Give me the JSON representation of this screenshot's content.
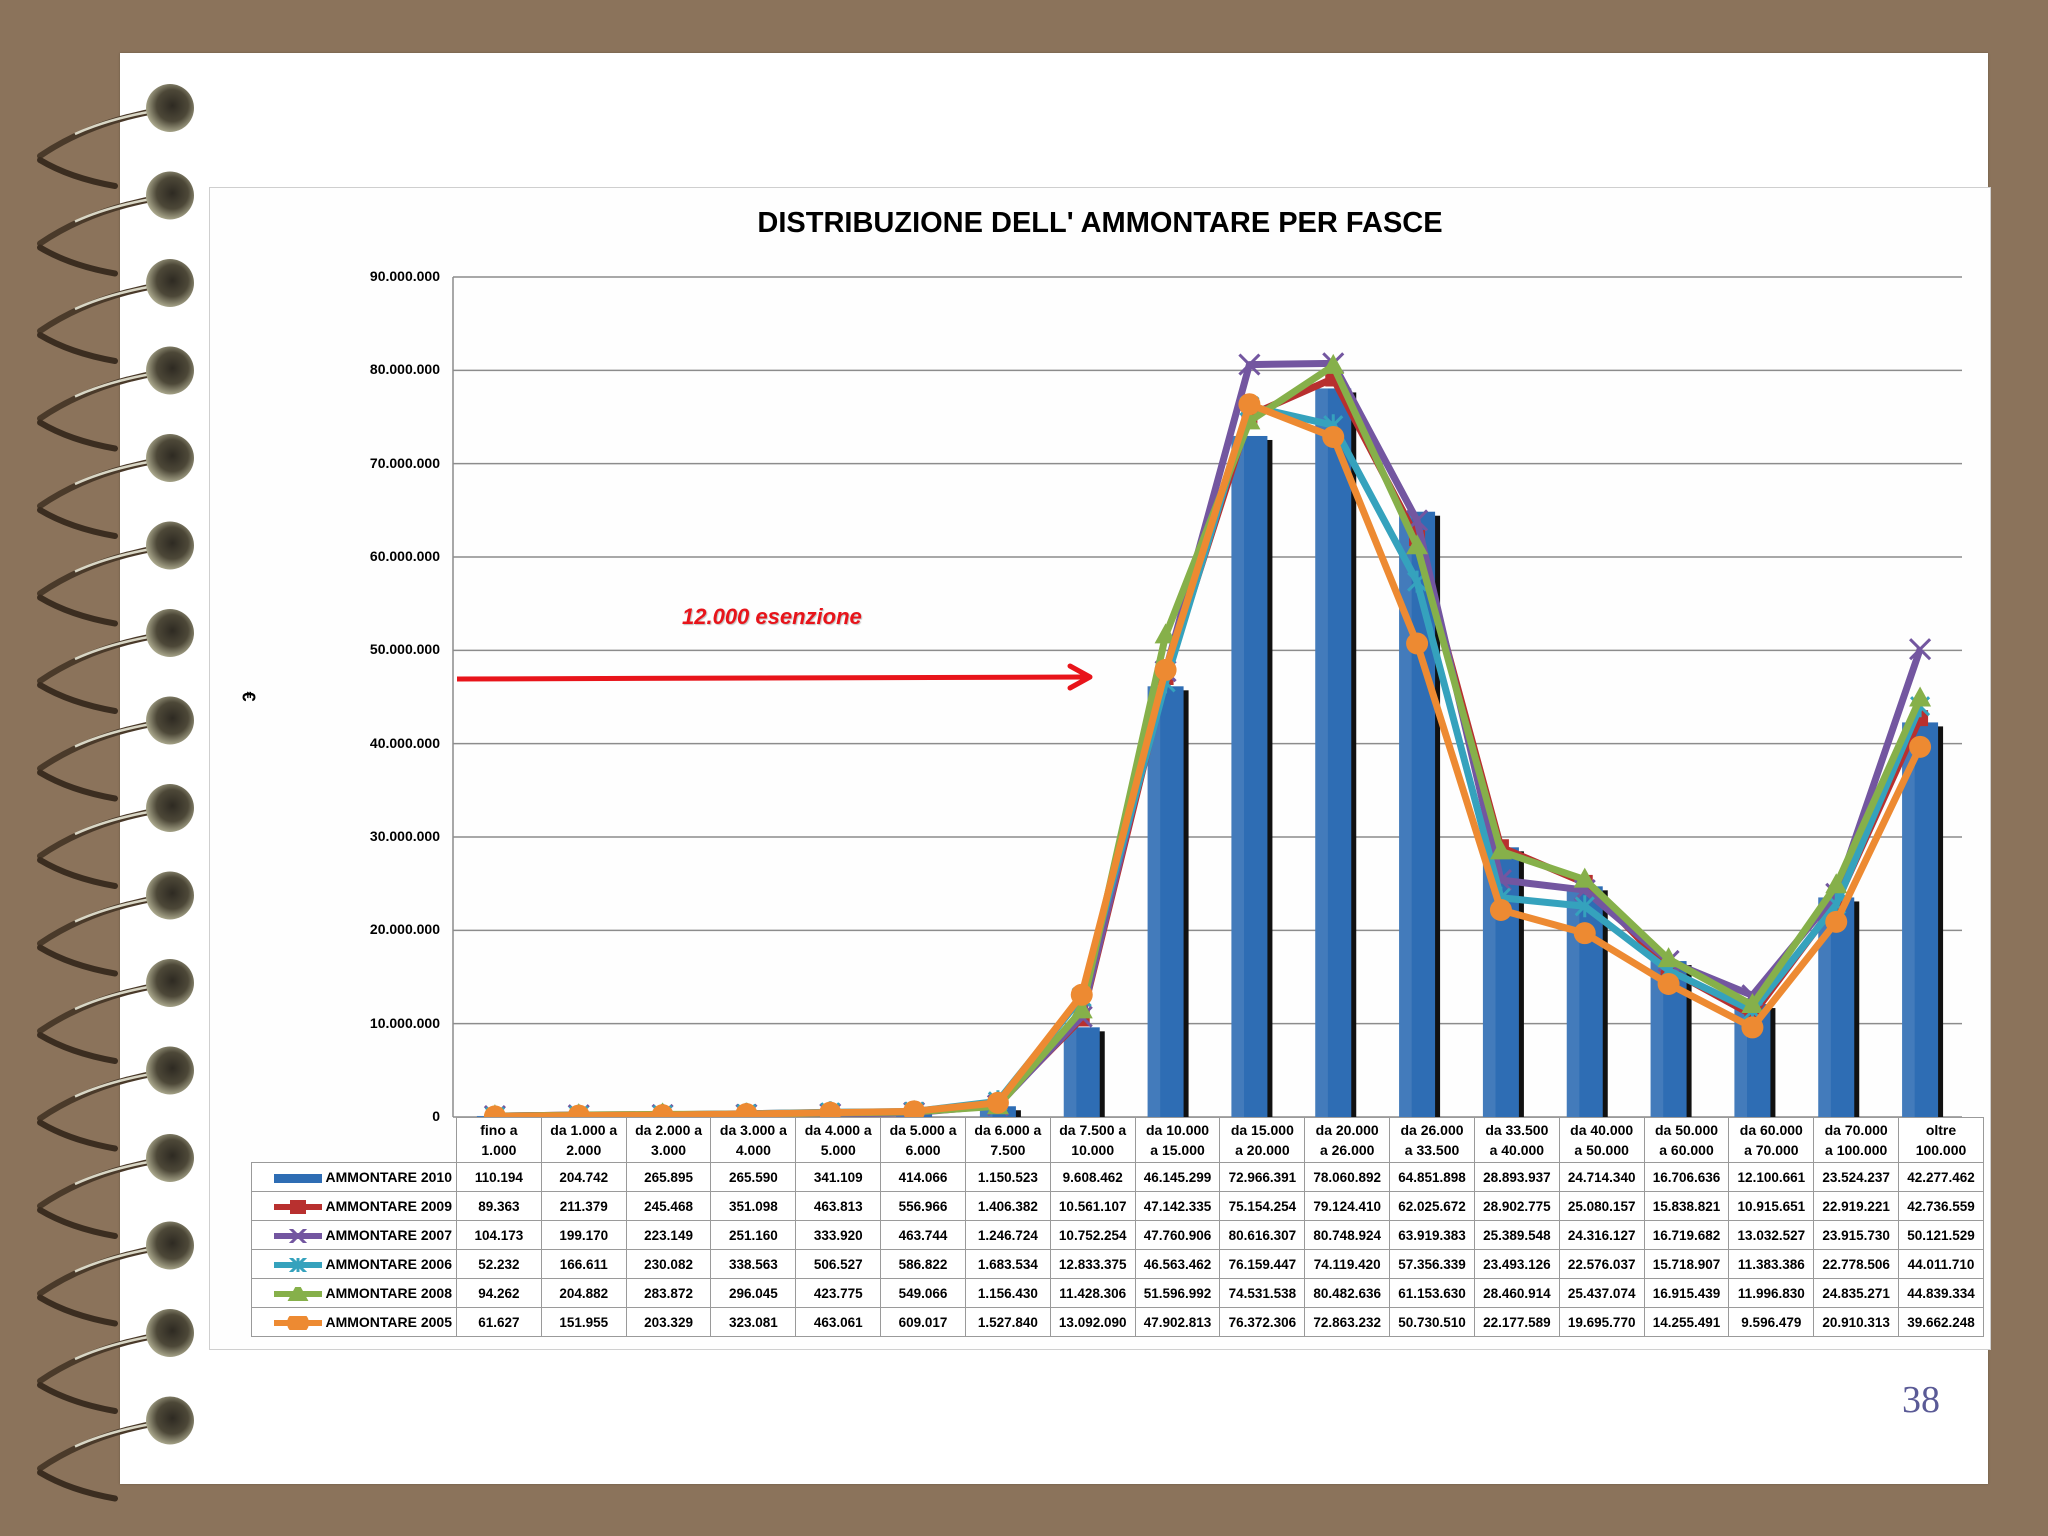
{
  "slide": {
    "page_number": "38",
    "background_color": "#8b735b"
  },
  "annotation": {
    "text": "12.000 esenzione",
    "color": "#e8141a"
  },
  "chart_data": {
    "type": "bar+line",
    "title": "DISTRIBUZIONE DELL' AMMONTARE PER  FASCE",
    "xlabel": "",
    "ylabel": "€",
    "ylim": [
      0,
      90000000
    ],
    "yticks": [
      "0",
      "10.000.000",
      "20.000.000",
      "30.000.000",
      "40.000.000",
      "50.000.000",
      "60.000.000",
      "70.000.000",
      "80.000.000",
      "90.000.000"
    ],
    "grid": true,
    "legend_position": "data-table",
    "categories": [
      [
        "fino a",
        "1.000"
      ],
      [
        "da 1.000 a",
        "2.000"
      ],
      [
        "da 2.000 a",
        "3.000"
      ],
      [
        "da 3.000 a",
        "4.000"
      ],
      [
        "da 4.000 a",
        "5.000"
      ],
      [
        "da 5.000 a",
        "6.000"
      ],
      [
        "da 6.000 a",
        "7.500"
      ],
      [
        "da 7.500 a",
        "10.000"
      ],
      [
        "da 10.000",
        "a 15.000"
      ],
      [
        "da 15.000",
        "a 20.000"
      ],
      [
        "da 20.000",
        "a 26.000"
      ],
      [
        "da 26.000",
        "a 33.500"
      ],
      [
        "da 33.500",
        "a 40.000"
      ],
      [
        "da 40.000",
        "a 50.000"
      ],
      [
        "da 50.000",
        "a 60.000"
      ],
      [
        "da 60.000",
        "a 70.000"
      ],
      [
        "da 70.000",
        "a 100.000"
      ],
      [
        "oltre",
        "100.000"
      ]
    ],
    "series": [
      {
        "name": "AMMONTARE 2010",
        "type": "bar",
        "color": "#2e6db4",
        "marker": "bar",
        "labels": [
          "110.194",
          "204.742",
          "265.895",
          "265.590",
          "341.109",
          "414.066",
          "1.150.523",
          "9.608.462",
          "46.145.299",
          "72.966.391",
          "78.060.892",
          "64.851.898",
          "28.893.937",
          "24.714.340",
          "16.706.636",
          "12.100.661",
          "23.524.237",
          "42.277.462"
        ],
        "values": [
          110194,
          204742,
          265895,
          265590,
          341109,
          414066,
          1150523,
          9608462,
          46145299,
          72966391,
          78060892,
          64851898,
          28893937,
          24714340,
          16706636,
          12100661,
          23524237,
          42277462
        ]
      },
      {
        "name": "AMMONTARE 2009",
        "type": "line",
        "color": "#b8302f",
        "marker": "square",
        "labels": [
          "89.363",
          "211.379",
          "245.468",
          "351.098",
          "463.813",
          "556.966",
          "1.406.382",
          "10.561.107",
          "47.142.335",
          "75.154.254",
          "79.124.410",
          "62.025.672",
          "28.902.775",
          "25.080.157",
          "15.838.821",
          "10.915.651",
          "22.919.221",
          "42.736.559"
        ],
        "values": [
          89363,
          211379,
          245468,
          351098,
          463813,
          556966,
          1406382,
          10561107,
          47142335,
          75154254,
          79124410,
          62025672,
          28902775,
          25080157,
          15838821,
          10915651,
          22919221,
          42736559
        ]
      },
      {
        "name": "AMMONTARE 2007",
        "type": "line",
        "color": "#7356a0",
        "marker": "x",
        "labels": [
          "104.173",
          "199.170",
          "223.149",
          "251.160",
          "333.920",
          "463.744",
          "1.246.724",
          "10.752.254",
          "47.760.906",
          "80.616.307",
          "80.748.924",
          "63.919.383",
          "25.389.548",
          "24.316.127",
          "16.719.682",
          "13.032.527",
          "23.915.730",
          "50.121.529"
        ],
        "values": [
          104173,
          199170,
          223149,
          251160,
          333920,
          463744,
          1246724,
          10752254,
          47760906,
          80616307,
          80748924,
          63919383,
          25389548,
          24316127,
          16719682,
          13032527,
          23915730,
          50121529
        ]
      },
      {
        "name": "AMMONTARE 2006",
        "type": "line",
        "color": "#35a2bd",
        "marker": "star",
        "labels": [
          "52.232",
          "166.611",
          "230.082",
          "338.563",
          "506.527",
          "586.822",
          "1.683.534",
          "12.833.375",
          "46.563.462",
          "76.159.447",
          "74.119.420",
          "57.356.339",
          "23.493.126",
          "22.576.037",
          "15.718.907",
          "11.383.386",
          "22.778.506",
          "44.011.710"
        ],
        "values": [
          52232,
          166611,
          230082,
          338563,
          506527,
          586822,
          1683534,
          12833375,
          46563462,
          76159447,
          74119420,
          57356339,
          23493126,
          22576037,
          15718907,
          11383386,
          22778506,
          44011710
        ]
      },
      {
        "name": "AMMONTARE 2008",
        "type": "line",
        "color": "#86b04a",
        "marker": "triangle",
        "labels": [
          "94.262",
          "204.882",
          "283.872",
          "296.045",
          "423.775",
          "549.066",
          "1.156.430",
          "11.428.306",
          "51.596.992",
          "74.531.538",
          "80.482.636",
          "61.153.630",
          "28.460.914",
          "25.437.074",
          "16.915.439",
          "11.996.830",
          "24.835.271",
          "44.839.334"
        ],
        "values": [
          94262,
          204882,
          283872,
          296045,
          423775,
          549066,
          1156430,
          11428306,
          51596992,
          74531538,
          80482636,
          61153630,
          28460914,
          25437074,
          16915439,
          11996830,
          24835271,
          44839334
        ]
      },
      {
        "name": "AMMONTARE 2005",
        "type": "line",
        "color": "#ed8a32",
        "marker": "circle",
        "labels": [
          "61.627",
          "151.955",
          "203.329",
          "323.081",
          "463.061",
          "609.017",
          "1.527.840",
          "13.092.090",
          "47.902.813",
          "76.372.306",
          "72.863.232",
          "50.730.510",
          "22.177.589",
          "19.695.770",
          "14.255.491",
          "9.596.479",
          "20.910.313",
          "39.662.248"
        ],
        "values": [
          61627,
          151955,
          203329,
          323081,
          463061,
          609017,
          1527840,
          13092090,
          47902813,
          76372306,
          72863232,
          50730510,
          22177589,
          19695770,
          14255491,
          9596479,
          20910313,
          39662248
        ]
      }
    ]
  }
}
